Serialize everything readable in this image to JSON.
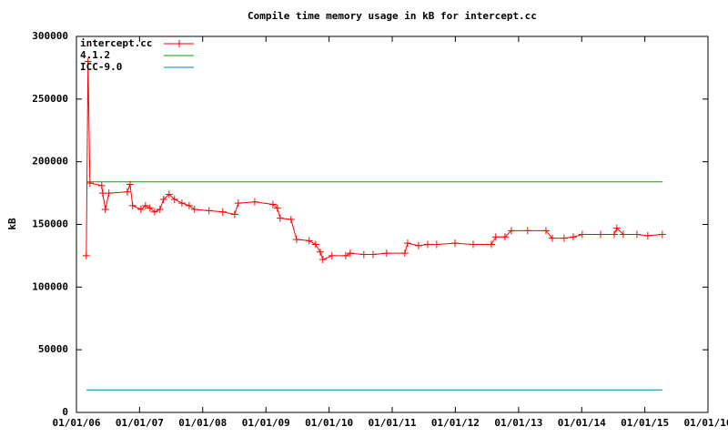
{
  "chart_data": {
    "type": "line",
    "title": "Compile time memory usage in kB for intercept.cc",
    "y_label": "kB",
    "xlim": [
      "2006-01-01",
      "2016-01-01"
    ],
    "xticks": [
      {
        "value": "2006-01-01",
        "label": "01/01/06"
      },
      {
        "value": "2007-01-01",
        "label": "01/01/07"
      },
      {
        "value": "2008-01-01",
        "label": "01/01/08"
      },
      {
        "value": "2009-01-01",
        "label": "01/01/09"
      },
      {
        "value": "2010-01-01",
        "label": "01/01/10"
      },
      {
        "value": "2011-01-01",
        "label": "01/01/11"
      },
      {
        "value": "2012-01-01",
        "label": "01/01/12"
      },
      {
        "value": "2013-01-01",
        "label": "01/01/13"
      },
      {
        "value": "2014-01-01",
        "label": "01/01/14"
      },
      {
        "value": "2015-01-01",
        "label": "01/01/15"
      },
      {
        "value": "2016-01-01",
        "label": "01/01/16"
      }
    ],
    "ylim": [
      0,
      300000
    ],
    "yticks": [
      0,
      50000,
      100000,
      150000,
      200000,
      250000,
      300000
    ],
    "legend": "top-left",
    "series": [
      {
        "name": "intercept.cc",
        "color": "#ff0000",
        "markers": true,
        "x": [
          "2006-02-27",
          "2006-03-09",
          "2006-03-20",
          "2006-05-27",
          "2006-06-02",
          "2006-06-17",
          "2006-07-08",
          "2006-10-22",
          "2006-11-07",
          "2006-11-22",
          "2007-01-09",
          "2007-02-04",
          "2007-03-02",
          "2007-03-29",
          "2007-04-29",
          "2007-05-20",
          "2007-06-21",
          "2007-07-22",
          "2007-09-03",
          "2007-10-15",
          "2007-11-15",
          "2008-02-07",
          "2008-04-26",
          "2008-07-04",
          "2008-07-25",
          "2008-10-28",
          "2009-02-10",
          "2009-03-08",
          "2009-03-24",
          "2009-05-26",
          "2009-06-27",
          "2009-09-08",
          "2009-10-15",
          "2009-11-11",
          "2009-11-26",
          "2010-01-18",
          "2010-04-07",
          "2010-05-03",
          "2010-07-21",
          "2010-09-12",
          "2010-11-30",
          "2011-03-15",
          "2011-03-31",
          "2011-06-02",
          "2011-07-25",
          "2011-09-15",
          "2011-12-30",
          "2012-04-13",
          "2012-07-27",
          "2012-08-22",
          "2012-10-14",
          "2012-11-20",
          "2013-02-22",
          "2013-06-08",
          "2013-07-15",
          "2013-09-21",
          "2013-11-13",
          "2014-01-04",
          "2014-04-20",
          "2014-07-08",
          "2014-07-23",
          "2014-08-29",
          "2014-11-16",
          "2015-01-18",
          "2015-04-12"
        ],
        "values": [
          125000,
          280000,
          183000,
          181000,
          175000,
          162000,
          175000,
          176000,
          182000,
          165000,
          162000,
          165000,
          163000,
          160000,
          162000,
          170000,
          174000,
          170000,
          167000,
          165000,
          162000,
          161000,
          160000,
          158000,
          167000,
          168000,
          166000,
          163000,
          155000,
          154000,
          138000,
          137000,
          134000,
          128000,
          122000,
          125000,
          125000,
          127000,
          126000,
          126000,
          127000,
          127000,
          135000,
          133000,
          134000,
          134000,
          135000,
          134000,
          134000,
          140000,
          140000,
          145000,
          145000,
          145000,
          139000,
          139000,
          140000,
          142000,
          142000,
          142000,
          147000,
          142000,
          142000,
          141000,
          142000
        ]
      },
      {
        "name": "4.1.2",
        "color": "#00a000",
        "markers": false,
        "x": [
          "2006-02-27",
          "2015-04-12"
        ],
        "values": [
          184000,
          184000
        ]
      },
      {
        "name": "ICC-9.0",
        "color": "#0080c0",
        "markers": false,
        "x": [
          "2006-02-27",
          "2015-04-12"
        ],
        "values": [
          18000,
          18000
        ]
      }
    ]
  }
}
